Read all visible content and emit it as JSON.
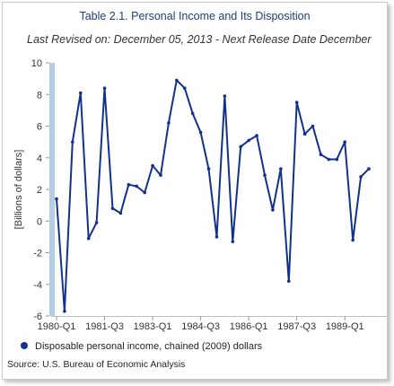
{
  "chart_data": {
    "type": "line",
    "title": "Table 2.1. Personal Income and Its Disposition",
    "subtitle": "Last Revised on: December 05, 2013 - Next Release Date December",
    "ylabel": "[Billions of dollars]",
    "xlabel": "",
    "ylim": [
      -6,
      10
    ],
    "yticks": [
      -6,
      -4,
      -2,
      0,
      2,
      4,
      6,
      8,
      10
    ],
    "xtick_labels": [
      "1980-Q1",
      "1981-Q3",
      "1983-Q1",
      "1984-Q3",
      "1986-Q1",
      "1987-Q3",
      "1989-Q1"
    ],
    "xtick_index": [
      0,
      6,
      12,
      18,
      24,
      30,
      36
    ],
    "grid": false,
    "legend_position": "bottom",
    "series": [
      {
        "name": "Disposable personal income, chained (2009) dollars",
        "color": "#12318c",
        "x": [
          "1980-Q1",
          "1980-Q2",
          "1980-Q3",
          "1980-Q4",
          "1981-Q1",
          "1981-Q2",
          "1981-Q3",
          "1981-Q4",
          "1982-Q1",
          "1982-Q2",
          "1982-Q3",
          "1982-Q4",
          "1983-Q1",
          "1983-Q2",
          "1983-Q3",
          "1983-Q4",
          "1984-Q1",
          "1984-Q2",
          "1984-Q3",
          "1984-Q4",
          "1985-Q1",
          "1985-Q2",
          "1985-Q3",
          "1985-Q4",
          "1986-Q1",
          "1986-Q2",
          "1986-Q3",
          "1986-Q4",
          "1987-Q1",
          "1987-Q2",
          "1987-Q3",
          "1987-Q4",
          "1988-Q1",
          "1988-Q2",
          "1988-Q3",
          "1988-Q4",
          "1989-Q1",
          "1989-Q2",
          "1989-Q3",
          "1989-Q4"
        ],
        "values": [
          1.4,
          -5.7,
          5.0,
          8.1,
          -1.1,
          -0.1,
          8.4,
          0.8,
          0.5,
          2.3,
          2.2,
          1.8,
          3.5,
          2.9,
          6.2,
          8.9,
          8.4,
          6.8,
          5.6,
          3.3,
          -1.0,
          7.9,
          -1.3,
          4.7,
          5.1,
          5.4,
          2.9,
          0.7,
          3.3,
          -3.8,
          7.5,
          5.5,
          6.0,
          4.2,
          3.9,
          3.9,
          5.0,
          -1.2,
          2.8,
          3.3
        ]
      }
    ]
  },
  "source": "Source: U.S. Bureau of Economic Analysis"
}
